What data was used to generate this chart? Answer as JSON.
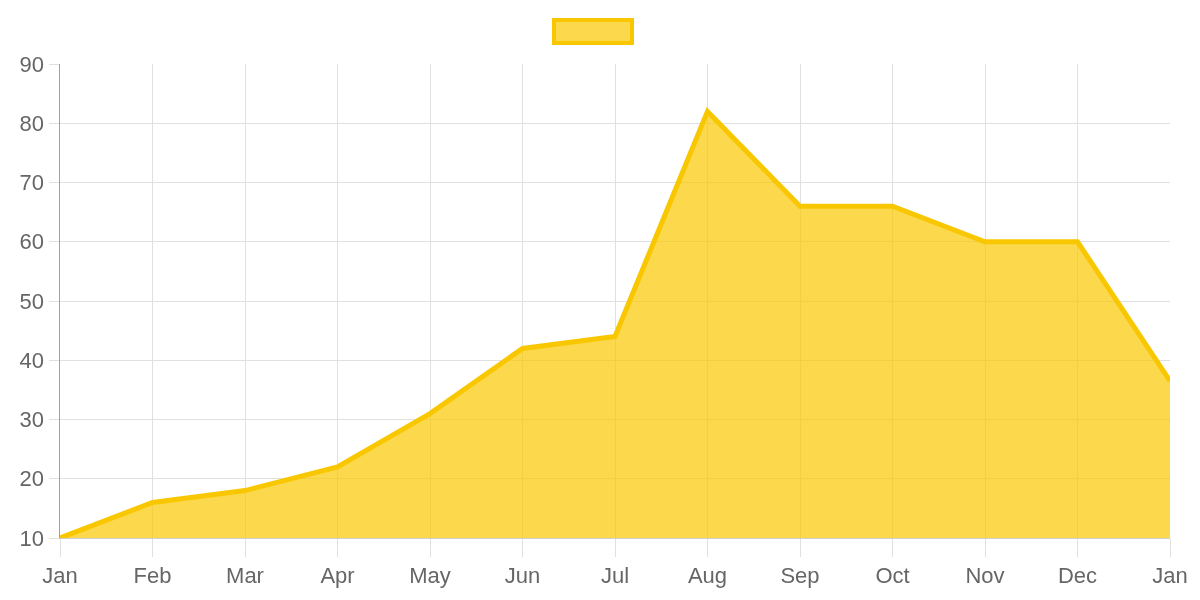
{
  "chart_data": {
    "type": "area",
    "categories": [
      "Jan",
      "Feb",
      "Mar",
      "Apr",
      "May",
      "Jun",
      "Jul",
      "Aug",
      "Sep",
      "Oct",
      "Nov",
      "Dec",
      "Jan"
    ],
    "series": [
      {
        "color": "#f9c700",
        "values": [
          10,
          16,
          18,
          22,
          31,
          42,
          44,
          82,
          66,
          66,
          60,
          60,
          36.5
        ]
      }
    ],
    "ylim": [
      10,
      90
    ],
    "yticks": [
      10,
      20,
      30,
      40,
      50,
      60,
      70,
      80,
      90
    ],
    "grid": true
  }
}
